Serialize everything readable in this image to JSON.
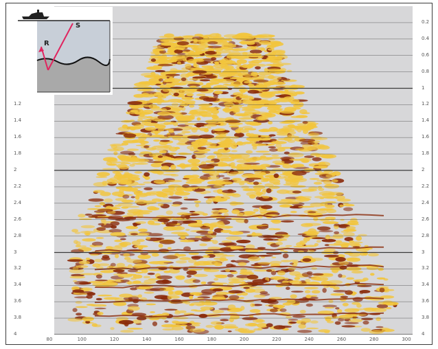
{
  "figure": {
    "time_axis": {
      "labels_left": [
        "1.2",
        "1.4",
        "1.6",
        "1.8",
        "2",
        "2.2",
        "2.4",
        "2.6",
        "2.8",
        "3",
        "3.2",
        "3.4",
        "3.6",
        "3.8",
        "4"
      ],
      "labels_right": [
        "0.2",
        "0.4",
        "0.6",
        "0.8",
        "1",
        "1.2",
        "1.4",
        "1.6",
        "1.8",
        "2",
        "2.2",
        "2.4",
        "2.6",
        "2.8",
        "3",
        "3.2",
        "3.4",
        "3.6",
        "3.8",
        "4"
      ],
      "min": 0.0,
      "max": 4.0
    },
    "trace_axis": {
      "labels": [
        "80",
        "100",
        "120",
        "140",
        "160",
        "180",
        "200",
        "220",
        "240",
        "260",
        "280",
        "300"
      ]
    },
    "inset": {
      "source_label": "S",
      "receiver_label": "R"
    },
    "colors": {
      "panel": "#d7d7d9",
      "gridline": "#2a2a2a",
      "wiggle_light": "#f2c53d",
      "wiggle_dark": "#8a2a0a",
      "ray": "#e0245e",
      "water": "#c8cfd8",
      "subsurface": "#a9a9a9"
    }
  }
}
